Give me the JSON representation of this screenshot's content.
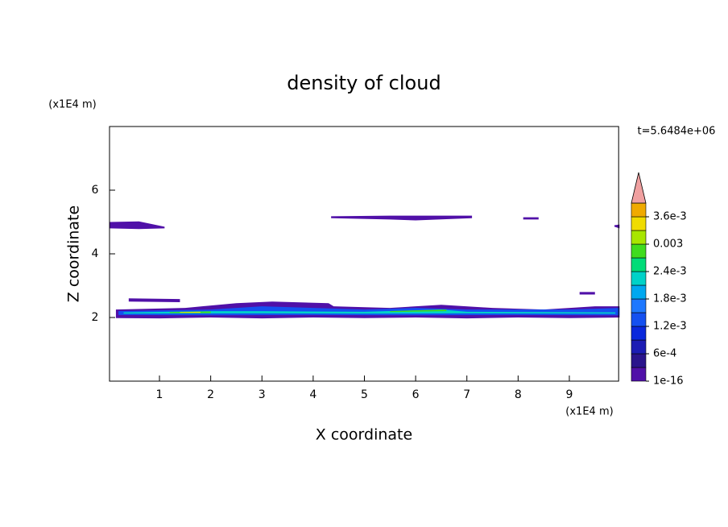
{
  "chart_data": {
    "type": "contour",
    "title": "density of cloud",
    "xlabel": "X coordinate",
    "ylabel": "Z coordinate",
    "xunit": "(x1E4 m)",
    "yunit": "(x1E4 m)",
    "time_label": "t=5.6484e+06",
    "xlim": [
      0,
      10
    ],
    "ylim": [
      0,
      8
    ],
    "xticks": [
      1,
      2,
      3,
      4,
      5,
      6,
      7,
      8,
      9
    ],
    "yticks": [
      2,
      4,
      6
    ],
    "colorbar": {
      "levels": [
        1e-16,
        0.0003,
        0.0006,
        0.0009,
        0.0012,
        0.0015,
        0.0018,
        0.0021,
        0.0024,
        0.0027,
        0.003,
        0.0033,
        0.0036,
        0.0039
      ],
      "colors": [
        "#5010a8",
        "#2a148c",
        "#1c1cb4",
        "#0a28dc",
        "#1450f0",
        "#1e78ff",
        "#00a8f0",
        "#00d2c8",
        "#00dc78",
        "#40dc1e",
        "#a8e600",
        "#f0dc00",
        "#f0aa00"
      ],
      "extend_color": "#f0a0a0",
      "ticks": [
        {
          "value": 1e-16,
          "label": "1e-16"
        },
        {
          "value": 0.0006,
          "label": "6e-4"
        },
        {
          "value": 0.0012,
          "label": "1.2e-3"
        },
        {
          "value": 0.0018,
          "label": "1.8e-3"
        },
        {
          "value": 0.0024,
          "label": "2.4e-3"
        },
        {
          "value": 0.003,
          "label": "0.003"
        },
        {
          "value": 0.0036,
          "label": "3.6e-3"
        }
      ]
    },
    "regions": [
      {
        "level": 0,
        "x": [
          0.02,
          0.6,
          1.1,
          1.1,
          0.6,
          0.02
        ],
        "z": [
          5.0,
          5.02,
          4.85,
          4.8,
          4.78,
          4.8
        ]
      },
      {
        "level": 0,
        "x": [
          4.35,
          5.5,
          7.1,
          7.1,
          6.0,
          5.5,
          4.35
        ],
        "z": [
          5.18,
          5.2,
          5.2,
          5.12,
          5.05,
          5.08,
          5.12
        ]
      },
      {
        "level": 0,
        "x": [
          8.1,
          8.4,
          8.4,
          8.1
        ],
        "z": [
          5.15,
          5.15,
          5.08,
          5.08
        ]
      },
      {
        "level": 0,
        "x": [
          9.88,
          9.98,
          9.98,
          9.88
        ],
        "z": [
          4.9,
          4.92,
          4.8,
          4.85
        ]
      },
      {
        "level": 0,
        "x": [
          9.2,
          9.5,
          9.5,
          9.2
        ],
        "z": [
          2.8,
          2.8,
          2.72,
          2.72
        ]
      },
      {
        "level": 0,
        "x": [
          0.4,
          1.4,
          1.4,
          0.4
        ],
        "z": [
          2.6,
          2.58,
          2.48,
          2.5
        ]
      },
      {
        "level": 0,
        "x": [
          0.15,
          1.5,
          2.5,
          3.2,
          4.3,
          4.4,
          5.5,
          6.5,
          7.5,
          8.5,
          9.5,
          9.98,
          9.98,
          9.0,
          8.0,
          7.0,
          6.0,
          5.0,
          4.0,
          3.0,
          2.0,
          1.0,
          0.15
        ],
        "z": [
          2.25,
          2.3,
          2.45,
          2.5,
          2.45,
          2.35,
          2.3,
          2.4,
          2.3,
          2.25,
          2.35,
          2.35,
          2.0,
          1.98,
          2.0,
          1.97,
          2.0,
          1.98,
          2.0,
          1.97,
          2.0,
          1.97,
          1.98
        ]
      },
      {
        "level": 4,
        "x": [
          0.2,
          2.0,
          3.0,
          4.0,
          5.0,
          6.0,
          7.0,
          8.0,
          9.0,
          9.98,
          9.98,
          8.0,
          6.0,
          4.0,
          2.0,
          0.2
        ],
        "z": [
          2.2,
          2.25,
          2.35,
          2.3,
          2.25,
          2.3,
          2.25,
          2.25,
          2.25,
          2.3,
          2.07,
          2.08,
          2.07,
          2.08,
          2.07,
          2.08
        ]
      },
      {
        "level": 7,
        "x": [
          0.3,
          2.0,
          3.0,
          5.0,
          6.5,
          7.0,
          9.9,
          9.9,
          7.0,
          5.0,
          3.0,
          0.3
        ],
        "z": [
          2.16,
          2.2,
          2.2,
          2.18,
          2.25,
          2.18,
          2.16,
          2.12,
          2.13,
          2.12,
          2.13,
          2.12
        ]
      },
      {
        "level": 9,
        "x": [
          1.2,
          2.0,
          2.0,
          1.2
        ],
        "z": [
          2.17,
          2.19,
          2.14,
          2.14
        ]
      },
      {
        "level": 9,
        "x": [
          5.5,
          6.6,
          6.6,
          5.5
        ],
        "z": [
          2.2,
          2.25,
          2.2,
          2.17
        ]
      },
      {
        "level": 11,
        "x": [
          1.4,
          1.8,
          1.8,
          1.4
        ],
        "z": [
          2.17,
          2.18,
          2.15,
          2.15
        ]
      }
    ]
  }
}
